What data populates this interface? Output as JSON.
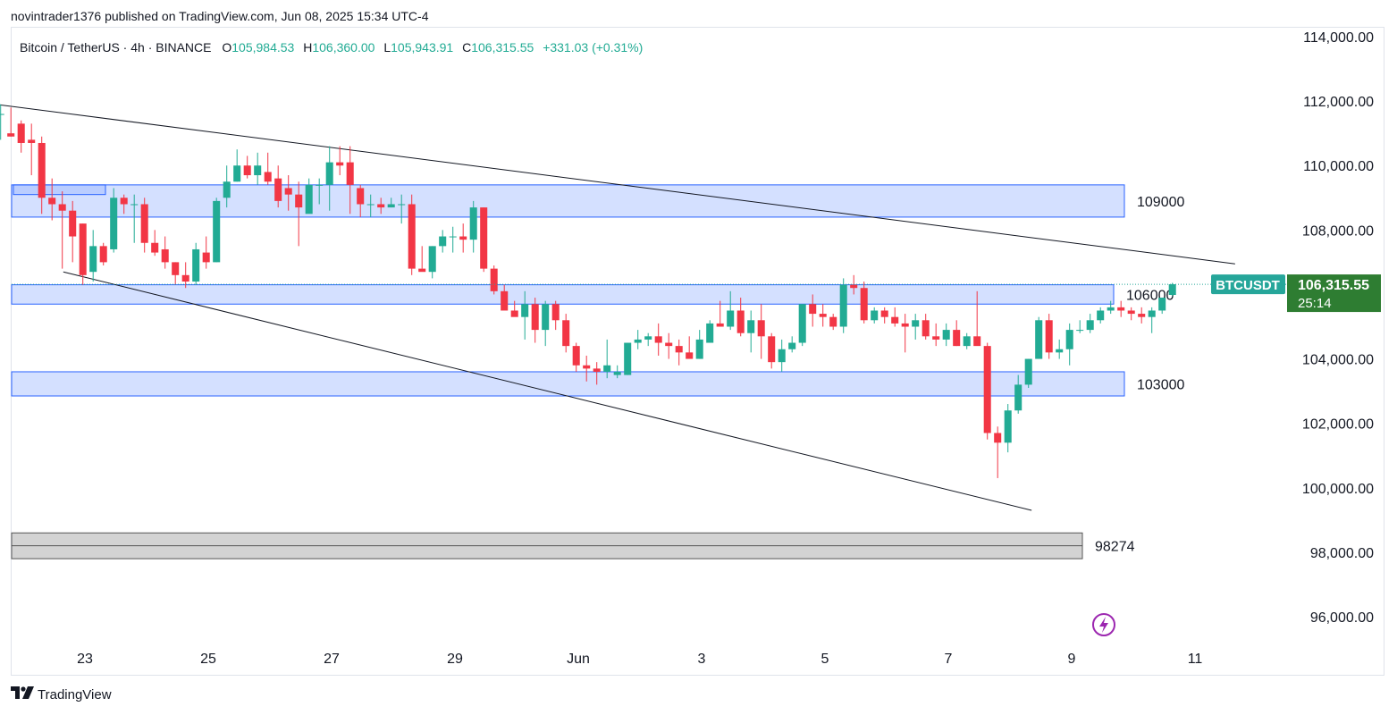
{
  "publisher": "novintrader1376 published on TradingView.com, Jun 08, 2025 15:34 UTC-4",
  "legend": {
    "symbol": "Bitcoin / TetherUS · 4h · BINANCE",
    "o_label": "O",
    "o_value": "105,984.53",
    "h_label": "H",
    "h_value": "106,360.00",
    "l_label": "L",
    "l_value": "105,943.91",
    "c_label": "C",
    "c_value": "106,315.55",
    "change": "+331.03 (+0.31%)"
  },
  "colors": {
    "up": "#22ab94",
    "down": "#f23645",
    "zone": "#2962ff",
    "badge": "#26a69a",
    "tag": "#2e7d32",
    "grey_zone": "#9e9e9e"
  },
  "footer": {
    "brand": "TradingView",
    "logo_icon": "tradingview-logo-icon"
  },
  "chart_data": {
    "type": "candlestick",
    "symbol": "BTCUSDT",
    "timeframe": "4h",
    "ylim": [
      95000,
      114500
    ],
    "y_ticks": [
      "114,000.00",
      "112,000.00",
      "110,000.00",
      "108,000.00",
      "106,000.00",
      "104,000.00",
      "102,000.00",
      "100,000.00",
      "98,000.00",
      "96,000.00"
    ],
    "y_tick_values": [
      114000,
      112000,
      110000,
      108000,
      106000,
      104000,
      102000,
      100000,
      98000,
      96000
    ],
    "x_ticks": [
      "23",
      "25",
      "27",
      "29",
      "Jun",
      "3",
      "5",
      "7",
      "9",
      "11"
    ],
    "x_tick_days": [
      -9,
      -7,
      -5,
      -3,
      -1,
      1,
      3,
      5,
      7,
      9
    ],
    "price_tag": {
      "symbol": "BTCUSDT",
      "price": "106,315.55",
      "countdown": "25:14",
      "value": 106315.55
    },
    "zones": [
      {
        "label": "109000",
        "low": 108400,
        "high": 109400,
        "color": "blue"
      },
      {
        "label": "106000",
        "low": 105700,
        "high": 106300,
        "color": "blue"
      },
      {
        "label": "103000",
        "low": 102850,
        "high": 103600,
        "color": "blue"
      },
      {
        "label": "98274",
        "low": 97800,
        "high": 98600,
        "color": "grey"
      }
    ],
    "trendlines": [
      {
        "x1": -10.65,
        "y1": 111950,
        "x2": 9.65,
        "y2": 106950
      },
      {
        "x1": -9.35,
        "y1": 106700,
        "x2": 6.35,
        "y2": 99300
      }
    ],
    "candles_start_day": -11.2,
    "candles_per_day": 6,
    "candles": [
      [
        111300,
        111900,
        109500,
        111800
      ],
      [
        111600,
        111800,
        110700,
        111100
      ],
      [
        110900,
        111400,
        110300,
        110800
      ],
      [
        110900,
        111800,
        110600,
        111300
      ],
      [
        111300,
        111900,
        110900,
        111100
      ],
      [
        111600,
        111900,
        110800,
        111600
      ],
      [
        111000,
        111800,
        110900,
        110900
      ],
      [
        111300,
        111400,
        110400,
        110700
      ],
      [
        110800,
        111300,
        109700,
        110700
      ],
      [
        110700,
        110900,
        108500,
        109000
      ],
      [
        109000,
        109600,
        108300,
        108800
      ],
      [
        108800,
        109200,
        106800,
        108600
      ],
      [
        108600,
        108900,
        107000,
        107800
      ],
      [
        108200,
        108200,
        106300,
        106600
      ],
      [
        106700,
        108000,
        106400,
        107500
      ],
      [
        107500,
        107600,
        106900,
        107000
      ],
      [
        107400,
        109300,
        107300,
        109000
      ],
      [
        109000,
        109100,
        108500,
        108800
      ],
      [
        108800,
        109100,
        107600,
        108800
      ],
      [
        108800,
        109000,
        107300,
        107600
      ],
      [
        107600,
        108000,
        107200,
        107300
      ],
      [
        107400,
        107800,
        106800,
        107000
      ],
      [
        107000,
        107000,
        106300,
        106600
      ],
      [
        106600,
        107000,
        106200,
        106400
      ],
      [
        106400,
        107600,
        106300,
        107400
      ],
      [
        107300,
        107800,
        106800,
        107000
      ],
      [
        107000,
        109000,
        107000,
        108900
      ],
      [
        109000,
        110000,
        108700,
        109500
      ],
      [
        109500,
        110500,
        109500,
        110000
      ],
      [
        110000,
        110300,
        109600,
        109700
      ],
      [
        109700,
        110400,
        109400,
        110000
      ],
      [
        109800,
        110400,
        109400,
        109500
      ],
      [
        109600,
        110000,
        108700,
        108900
      ],
      [
        109300,
        109700,
        108600,
        109100
      ],
      [
        109100,
        109500,
        107500,
        108700
      ],
      [
        108500,
        109600,
        108600,
        109400
      ],
      [
        109400,
        109600,
        108800,
        109400
      ],
      [
        109400,
        110600,
        108600,
        110100
      ],
      [
        110100,
        110600,
        109700,
        110000
      ],
      [
        110100,
        110600,
        108500,
        109400
      ],
      [
        109300,
        109400,
        108400,
        108800
      ],
      [
        108800,
        109100,
        108400,
        108800
      ],
      [
        108800,
        109000,
        108500,
        108700
      ],
      [
        108700,
        109000,
        108700,
        108800
      ],
      [
        108800,
        109100,
        108200,
        108800
      ],
      [
        108800,
        109100,
        106600,
        106800
      ],
      [
        106800,
        107500,
        106800,
        106700
      ],
      [
        106700,
        107500,
        106500,
        107500
      ],
      [
        107500,
        108000,
        107300,
        107800
      ],
      [
        107800,
        108100,
        107300,
        107800
      ],
      [
        107800,
        108200,
        107300,
        107700
      ],
      [
        107700,
        108900,
        107300,
        108700
      ],
      [
        108700,
        108700,
        106700,
        106800
      ],
      [
        106800,
        106900,
        106000,
        106100
      ],
      [
        106100,
        106300,
        105600,
        105500
      ],
      [
        105500,
        105800,
        105400,
        105300
      ],
      [
        105300,
        106100,
        104600,
        105700
      ],
      [
        105700,
        105900,
        104500,
        104900
      ],
      [
        104900,
        105800,
        104400,
        105700
      ],
      [
        105700,
        105800,
        104900,
        105200
      ],
      [
        105200,
        105400,
        104200,
        104400
      ],
      [
        104400,
        104500,
        103600,
        103800
      ],
      [
        103800,
        104100,
        103300,
        103700
      ],
      [
        103700,
        103900,
        103200,
        103600
      ],
      [
        103600,
        104600,
        103400,
        103800
      ],
      [
        103500,
        103800,
        103400,
        103600
      ],
      [
        103500,
        104500,
        103500,
        104500
      ],
      [
        104500,
        104900,
        104300,
        104600
      ],
      [
        104600,
        104800,
        104400,
        104700
      ],
      [
        104700,
        105100,
        104100,
        104500
      ],
      [
        104500,
        104800,
        104000,
        104400
      ],
      [
        104400,
        104600,
        103800,
        104200
      ],
      [
        104200,
        104700,
        104100,
        104000
      ],
      [
        104000,
        104900,
        104000,
        104600
      ],
      [
        104500,
        105200,
        104600,
        105100
      ],
      [
        105100,
        105800,
        105000,
        105000
      ],
      [
        105000,
        106100,
        104900,
        105500
      ],
      [
        105500,
        105900,
        104700,
        104800
      ],
      [
        104800,
        105500,
        104200,
        105200
      ],
      [
        105200,
        105700,
        104000,
        104700
      ],
      [
        104700,
        104800,
        103700,
        103900
      ],
      [
        103900,
        104600,
        103600,
        104300
      ],
      [
        104300,
        104700,
        104200,
        104500
      ],
      [
        104500,
        105700,
        104400,
        105700
      ],
      [
        105700,
        106000,
        105000,
        105400
      ],
      [
        105400,
        105700,
        105000,
        105300
      ],
      [
        105300,
        105400,
        104900,
        105000
      ],
      [
        105000,
        106500,
        104800,
        106300
      ],
      [
        106300,
        106600,
        106000,
        106200
      ],
      [
        106200,
        106400,
        105100,
        105200
      ],
      [
        105200,
        105600,
        105100,
        105500
      ],
      [
        105500,
        105600,
        105100,
        105300
      ],
      [
        105300,
        105600,
        105000,
        105100
      ],
      [
        105100,
        105400,
        104200,
        105000
      ],
      [
        105000,
        105400,
        104600,
        105200
      ],
      [
        105200,
        105400,
        104600,
        104700
      ],
      [
        104700,
        105100,
        104400,
        104600
      ],
      [
        104600,
        105100,
        104400,
        104900
      ],
      [
        104900,
        105200,
        104400,
        104400
      ],
      [
        104400,
        104800,
        104300,
        104700
      ],
      [
        104700,
        106100,
        104500,
        104400
      ],
      [
        104400,
        104500,
        101500,
        101700
      ],
      [
        101700,
        101900,
        100300,
        101400
      ],
      [
        101400,
        102600,
        101100,
        102400
      ],
      [
        102400,
        103500,
        102300,
        103200
      ],
      [
        103200,
        104000,
        103100,
        104000
      ],
      [
        104000,
        105300,
        104000,
        105200
      ],
      [
        105200,
        105400,
        104000,
        104200
      ],
      [
        104200,
        104600,
        104000,
        104300
      ],
      [
        104300,
        105100,
        103800,
        104900
      ],
      [
        104900,
        105200,
        104800,
        104900
      ],
      [
        104900,
        105400,
        104800,
        105200
      ],
      [
        105200,
        105600,
        105100,
        105500
      ],
      [
        105500,
        105800,
        105400,
        105600
      ],
      [
        105600,
        105800,
        105300,
        105500
      ],
      [
        105500,
        105600,
        105200,
        105400
      ],
      [
        105400,
        105600,
        105100,
        105300
      ],
      [
        105300,
        105600,
        104800,
        105500
      ],
      [
        105500,
        105900,
        105400,
        105900
      ],
      [
        105984.53,
        106360,
        105943.91,
        106315.55
      ]
    ]
  }
}
